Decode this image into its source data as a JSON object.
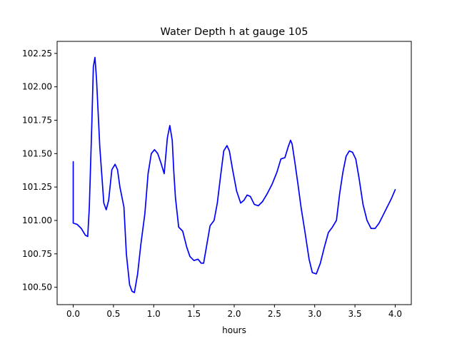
{
  "chart_data": {
    "type": "line",
    "title": "Water Depth h at gauge 105",
    "xlabel": "hours",
    "ylabel": "",
    "xlim": [
      -0.2,
      4.2
    ],
    "ylim": [
      100.37,
      102.34
    ],
    "x_ticks": [
      0.0,
      0.5,
      1.0,
      1.5,
      2.0,
      2.5,
      3.0,
      3.5,
      4.0
    ],
    "x_tick_labels": [
      "0.0",
      "0.5",
      "1.0",
      "1.5",
      "2.0",
      "2.5",
      "3.0",
      "3.5",
      "4.0"
    ],
    "y_ticks": [
      100.5,
      100.75,
      101.0,
      101.25,
      101.5,
      101.75,
      102.0,
      102.25
    ],
    "y_tick_labels": [
      "100.50",
      "100.75",
      "101.00",
      "101.25",
      "101.50",
      "101.75",
      "102.00",
      "102.25"
    ],
    "grid": false,
    "line_color": "#0000ff",
    "series": [
      {
        "name": "",
        "x": [
          0.0,
          0.0,
          0.05,
          0.1,
          0.15,
          0.18,
          0.2,
          0.23,
          0.25,
          0.27,
          0.29,
          0.33,
          0.38,
          0.41,
          0.44,
          0.48,
          0.52,
          0.55,
          0.58,
          0.63,
          0.66,
          0.7,
          0.73,
          0.76,
          0.8,
          0.84,
          0.89,
          0.93,
          0.97,
          1.01,
          1.05,
          1.09,
          1.13,
          1.17,
          1.2,
          1.23,
          1.25,
          1.27,
          1.31,
          1.36,
          1.41,
          1.45,
          1.5,
          1.55,
          1.59,
          1.62,
          1.66,
          1.7,
          1.75,
          1.79,
          1.83,
          1.87,
          1.91,
          1.94,
          1.98,
          2.03,
          2.08,
          2.12,
          2.16,
          2.2,
          2.25,
          2.3,
          2.35,
          2.41,
          2.47,
          2.53,
          2.58,
          2.63,
          2.67,
          2.7,
          2.72,
          2.75,
          2.79,
          2.83,
          2.88,
          2.93,
          2.97,
          3.02,
          3.07,
          3.12,
          3.17,
          3.22,
          3.27,
          3.31,
          3.35,
          3.39,
          3.43,
          3.47,
          3.51,
          3.55,
          3.6,
          3.65,
          3.7,
          3.75,
          3.8,
          3.85,
          3.9,
          3.95,
          4.0
        ],
        "y": [
          101.44,
          100.98,
          100.97,
          100.94,
          100.89,
          100.88,
          101.1,
          101.7,
          102.15,
          102.22,
          102.05,
          101.55,
          101.13,
          101.08,
          101.15,
          101.38,
          101.42,
          101.38,
          101.25,
          101.1,
          100.75,
          100.52,
          100.47,
          100.46,
          100.6,
          100.82,
          101.05,
          101.35,
          101.5,
          101.53,
          101.5,
          101.43,
          101.35,
          101.62,
          101.71,
          101.6,
          101.36,
          101.17,
          100.95,
          100.92,
          100.8,
          100.73,
          100.7,
          100.71,
          100.68,
          100.68,
          100.82,
          100.96,
          101.0,
          101.13,
          101.33,
          101.52,
          101.56,
          101.52,
          101.38,
          101.22,
          101.13,
          101.15,
          101.19,
          101.18,
          101.12,
          101.11,
          101.14,
          101.2,
          101.27,
          101.36,
          101.46,
          101.47,
          101.55,
          101.6,
          101.57,
          101.45,
          101.28,
          101.1,
          100.91,
          100.71,
          100.61,
          100.6,
          100.68,
          100.8,
          100.91,
          100.95,
          101.0,
          101.2,
          101.36,
          101.48,
          101.52,
          101.51,
          101.46,
          101.32,
          101.12,
          101.0,
          100.94,
          100.94,
          100.98,
          101.04,
          101.1,
          101.16,
          101.23
        ]
      }
    ]
  }
}
